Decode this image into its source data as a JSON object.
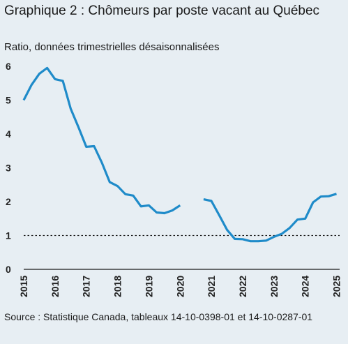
{
  "header": {
    "title": "Graphique 2 : Chômeurs par poste vacant au Québec",
    "subtitle": "Ratio, données trimestrielles désaisonnalisées"
  },
  "footer": {
    "source": "Source : Statistique Canada, tableaux 14-10-0398-01 et 14-10-0287-01"
  },
  "colors": {
    "background": "#e7eef3",
    "series": "#1f8bc9",
    "reference": "#1a1a1a",
    "axis": "#1a1a1a"
  },
  "chart_data": {
    "type": "line",
    "title": "Graphique 2 : Chômeurs par poste vacant au Québec",
    "subtitle": "Ratio, données trimestrielles désaisonnalisées",
    "xlabel": "",
    "ylabel": "",
    "xlim": [
      2015,
      2025.1
    ],
    "ylim": [
      0,
      6
    ],
    "x_ticks": [
      "2015",
      "2016",
      "2017",
      "2018",
      "2019",
      "2020",
      "2021",
      "2022",
      "2023",
      "2024",
      "2025"
    ],
    "y_ticks": [
      "0",
      "1",
      "2",
      "3",
      "4",
      "5",
      "6"
    ],
    "grid": false,
    "reference_line": {
      "y": 1,
      "style": "dotted"
    },
    "series": [
      {
        "values_by_quarter": [
          {
            "x": 2015.0,
            "y": 5.0
          },
          {
            "x": 2015.25,
            "y": 5.45
          },
          {
            "x": 2015.5,
            "y": 5.78
          },
          {
            "x": 2015.75,
            "y": 5.95
          },
          {
            "x": 2016.0,
            "y": 5.62
          },
          {
            "x": 2016.25,
            "y": 5.57
          },
          {
            "x": 2016.5,
            "y": 4.75
          },
          {
            "x": 2016.75,
            "y": 4.2
          },
          {
            "x": 2017.0,
            "y": 3.62
          },
          {
            "x": 2017.25,
            "y": 3.64
          },
          {
            "x": 2017.5,
            "y": 3.15
          },
          {
            "x": 2017.75,
            "y": 2.58
          },
          {
            "x": 2018.0,
            "y": 2.46
          },
          {
            "x": 2018.25,
            "y": 2.22
          },
          {
            "x": 2018.5,
            "y": 2.18
          },
          {
            "x": 2018.75,
            "y": 1.86
          },
          {
            "x": 2019.0,
            "y": 1.89
          },
          {
            "x": 2019.25,
            "y": 1.68
          },
          {
            "x": 2019.5,
            "y": 1.66
          },
          {
            "x": 2019.75,
            "y": 1.74
          },
          {
            "x": 2020.0,
            "y": 1.89
          },
          {
            "x": 2020.75,
            "y": 2.07
          },
          {
            "x": 2021.0,
            "y": 2.02
          },
          {
            "x": 2021.25,
            "y": 1.6
          },
          {
            "x": 2021.5,
            "y": 1.17
          },
          {
            "x": 2021.75,
            "y": 0.9
          },
          {
            "x": 2022.0,
            "y": 0.89
          },
          {
            "x": 2022.25,
            "y": 0.83
          },
          {
            "x": 2022.5,
            "y": 0.83
          },
          {
            "x": 2022.75,
            "y": 0.85
          },
          {
            "x": 2023.0,
            "y": 0.96
          },
          {
            "x": 2023.25,
            "y": 1.05
          },
          {
            "x": 2023.5,
            "y": 1.22
          },
          {
            "x": 2023.75,
            "y": 1.47
          },
          {
            "x": 2024.0,
            "y": 1.5
          },
          {
            "x": 2024.25,
            "y": 1.98
          },
          {
            "x": 2024.5,
            "y": 2.15
          },
          {
            "x": 2024.75,
            "y": 2.16
          },
          {
            "x": 2025.0,
            "y": 2.23
          }
        ],
        "gap": {
          "from": 2020.0,
          "to": 2020.75
        }
      }
    ]
  }
}
